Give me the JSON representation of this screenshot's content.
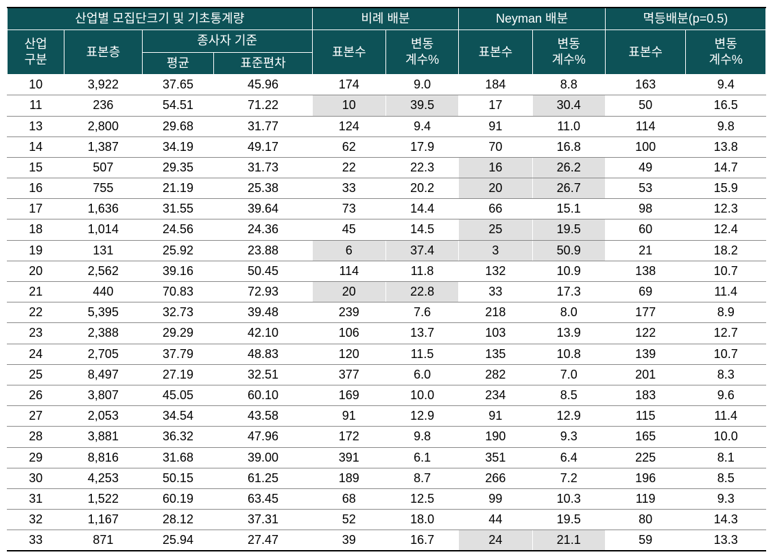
{
  "headers": {
    "group1": "산업별 모집단크기 및 기초통계량",
    "group2": "비례 배분",
    "group3": "Neyman 배분",
    "group4": "멱등배분(p=0.5)",
    "industry_class": "산업\n구분",
    "sample_strata": "표본층",
    "workers_basis": "종사자 기준",
    "mean": "평균",
    "stddev": "표준편차",
    "sample_size": "표본수",
    "cv_percent": "변동\n계수%"
  },
  "highlight_color": "#e0e0e0",
  "header_bg": "#0d5257",
  "header_fg": "#ffffff",
  "rows": [
    {
      "industry": "10",
      "strata": "3,922",
      "mean": "37.65",
      "stddev": "45.96",
      "prop_n": "174",
      "prop_cv": "9.0",
      "ney_n": "184",
      "ney_cv": "8.8",
      "pow_n": "163",
      "pow_cv": "9.4"
    },
    {
      "industry": "11",
      "strata": "236",
      "mean": "54.51",
      "stddev": "71.22",
      "prop_n": "10",
      "prop_cv": "39.5",
      "ney_n": "17",
      "ney_cv": "30.4",
      "pow_n": "50",
      "pow_cv": "16.5",
      "hl": [
        "prop_n",
        "prop_cv",
        "ney_cv"
      ]
    },
    {
      "industry": "13",
      "strata": "2,800",
      "mean": "29.68",
      "stddev": "31.77",
      "prop_n": "124",
      "prop_cv": "9.4",
      "ney_n": "91",
      "ney_cv": "11.0",
      "pow_n": "114",
      "pow_cv": "9.8"
    },
    {
      "industry": "14",
      "strata": "1,387",
      "mean": "34.19",
      "stddev": "49.17",
      "prop_n": "62",
      "prop_cv": "17.9",
      "ney_n": "70",
      "ney_cv": "16.8",
      "pow_n": "100",
      "pow_cv": "13.8"
    },
    {
      "industry": "15",
      "strata": "507",
      "mean": "29.35",
      "stddev": "31.73",
      "prop_n": "22",
      "prop_cv": "22.3",
      "ney_n": "16",
      "ney_cv": "26.2",
      "pow_n": "49",
      "pow_cv": "14.7",
      "hl": [
        "ney_n",
        "ney_cv"
      ]
    },
    {
      "industry": "16",
      "strata": "755",
      "mean": "21.19",
      "stddev": "25.38",
      "prop_n": "33",
      "prop_cv": "20.2",
      "ney_n": "20",
      "ney_cv": "26.7",
      "pow_n": "53",
      "pow_cv": "15.9",
      "hl": [
        "ney_n",
        "ney_cv"
      ]
    },
    {
      "industry": "17",
      "strata": "1,636",
      "mean": "31.55",
      "stddev": "39.64",
      "prop_n": "73",
      "prop_cv": "14.4",
      "ney_n": "66",
      "ney_cv": "15.1",
      "pow_n": "98",
      "pow_cv": "12.3"
    },
    {
      "industry": "18",
      "strata": "1,014",
      "mean": "24.56",
      "stddev": "24.36",
      "prop_n": "45",
      "prop_cv": "14.5",
      "ney_n": "25",
      "ney_cv": "19.5",
      "pow_n": "60",
      "pow_cv": "12.4",
      "hl": [
        "ney_n",
        "ney_cv"
      ]
    },
    {
      "industry": "19",
      "strata": "131",
      "mean": "25.92",
      "stddev": "23.88",
      "prop_n": "6",
      "prop_cv": "37.4",
      "ney_n": "3",
      "ney_cv": "50.9",
      "pow_n": "21",
      "pow_cv": "18.2",
      "hl": [
        "prop_n",
        "prop_cv",
        "ney_n",
        "ney_cv"
      ]
    },
    {
      "industry": "20",
      "strata": "2,562",
      "mean": "39.16",
      "stddev": "50.45",
      "prop_n": "114",
      "prop_cv": "11.8",
      "ney_n": "132",
      "ney_cv": "10.9",
      "pow_n": "138",
      "pow_cv": "10.7"
    },
    {
      "industry": "21",
      "strata": "440",
      "mean": "70.83",
      "stddev": "72.93",
      "prop_n": "20",
      "prop_cv": "22.8",
      "ney_n": "33",
      "ney_cv": "17.3",
      "pow_n": "69",
      "pow_cv": "11.4",
      "hl": [
        "prop_n",
        "prop_cv"
      ]
    },
    {
      "industry": "22",
      "strata": "5,395",
      "mean": "32.73",
      "stddev": "39.48",
      "prop_n": "239",
      "prop_cv": "7.6",
      "ney_n": "218",
      "ney_cv": "8.0",
      "pow_n": "177",
      "pow_cv": "8.9"
    },
    {
      "industry": "23",
      "strata": "2,388",
      "mean": "29.29",
      "stddev": "42.10",
      "prop_n": "106",
      "prop_cv": "13.7",
      "ney_n": "103",
      "ney_cv": "13.9",
      "pow_n": "122",
      "pow_cv": "12.7"
    },
    {
      "industry": "24",
      "strata": "2,705",
      "mean": "37.79",
      "stddev": "48.83",
      "prop_n": "120",
      "prop_cv": "11.5",
      "ney_n": "135",
      "ney_cv": "10.8",
      "pow_n": "139",
      "pow_cv": "10.7"
    },
    {
      "industry": "25",
      "strata": "8,497",
      "mean": "27.19",
      "stddev": "32.51",
      "prop_n": "377",
      "prop_cv": "6.0",
      "ney_n": "282",
      "ney_cv": "7.0",
      "pow_n": "201",
      "pow_cv": "8.3"
    },
    {
      "industry": "26",
      "strata": "3,807",
      "mean": "45.05",
      "stddev": "60.10",
      "prop_n": "169",
      "prop_cv": "10.0",
      "ney_n": "234",
      "ney_cv": "8.5",
      "pow_n": "183",
      "pow_cv": "9.6"
    },
    {
      "industry": "27",
      "strata": "2,053",
      "mean": "34.54",
      "stddev": "43.58",
      "prop_n": "91",
      "prop_cv": "12.9",
      "ney_n": "91",
      "ney_cv": "12.9",
      "pow_n": "115",
      "pow_cv": "11.4"
    },
    {
      "industry": "28",
      "strata": "3,881",
      "mean": "36.32",
      "stddev": "47.96",
      "prop_n": "172",
      "prop_cv": "9.8",
      "ney_n": "190",
      "ney_cv": "9.3",
      "pow_n": "165",
      "pow_cv": "10.0"
    },
    {
      "industry": "29",
      "strata": "8,816",
      "mean": "31.68",
      "stddev": "39.00",
      "prop_n": "391",
      "prop_cv": "6.1",
      "ney_n": "351",
      "ney_cv": "6.4",
      "pow_n": "225",
      "pow_cv": "8.1"
    },
    {
      "industry": "30",
      "strata": "4,253",
      "mean": "50.15",
      "stddev": "61.25",
      "prop_n": "189",
      "prop_cv": "8.7",
      "ney_n": "266",
      "ney_cv": "7.2",
      "pow_n": "196",
      "pow_cv": "8.5"
    },
    {
      "industry": "31",
      "strata": "1,522",
      "mean": "60.19",
      "stddev": "63.45",
      "prop_n": "68",
      "prop_cv": "12.5",
      "ney_n": "99",
      "ney_cv": "10.3",
      "pow_n": "119",
      "pow_cv": "9.3"
    },
    {
      "industry": "32",
      "strata": "1,167",
      "mean": "28.12",
      "stddev": "37.31",
      "prop_n": "52",
      "prop_cv": "18.0",
      "ney_n": "44",
      "ney_cv": "19.5",
      "pow_n": "80",
      "pow_cv": "14.3"
    },
    {
      "industry": "33",
      "strata": "871",
      "mean": "25.94",
      "stddev": "27.47",
      "prop_n": "39",
      "prop_cv": "16.7",
      "ney_n": "24",
      "ney_cv": "21.1",
      "pow_n": "59",
      "pow_cv": "13.3",
      "hl": [
        "ney_n",
        "ney_cv"
      ]
    }
  ]
}
